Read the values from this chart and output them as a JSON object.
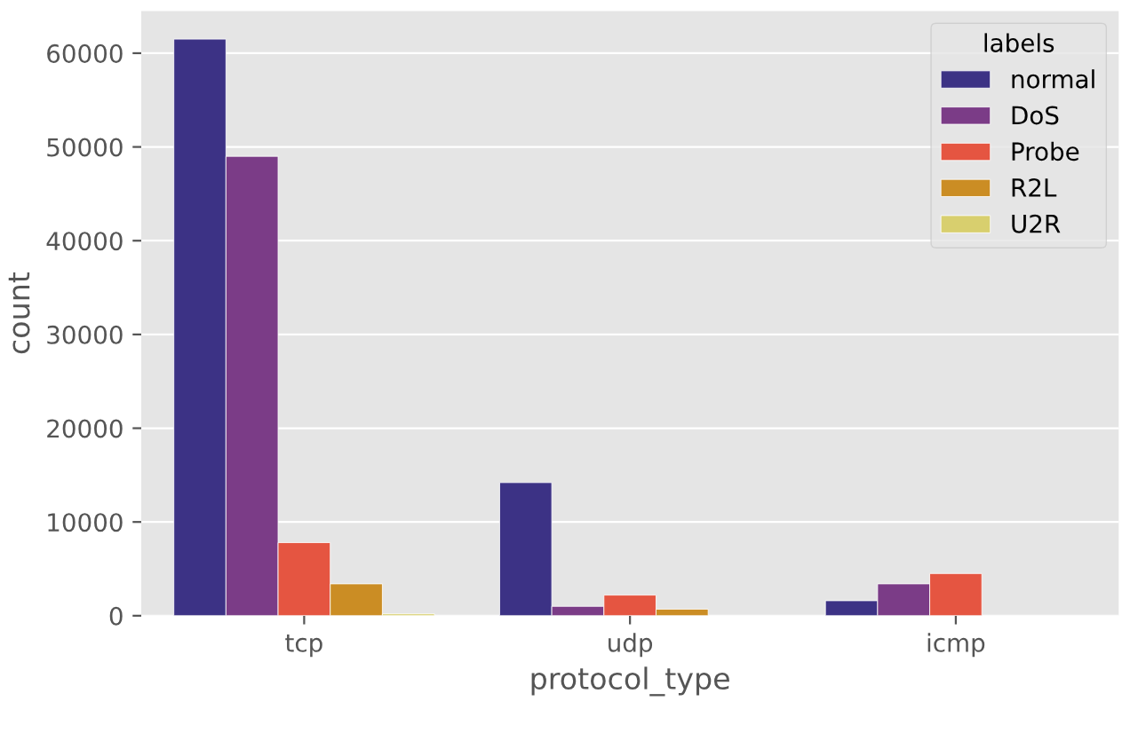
{
  "chart_data": {
    "type": "bar",
    "xlabel": "protocol_type",
    "ylabel": "count",
    "legend_title": "labels",
    "legend": "top right",
    "grid": "y",
    "categories": [
      "tcp",
      "udp",
      "icmp"
    ],
    "series": [
      {
        "name": "normal",
        "color": "#3c3285",
        "values": [
          61500,
          14200,
          1600
        ]
      },
      {
        "name": "DoS",
        "color": "#7b3c87",
        "values": [
          49000,
          1000,
          3400
        ]
      },
      {
        "name": "Probe",
        "color": "#e55541",
        "values": [
          7800,
          2200,
          4500
        ]
      },
      {
        "name": "R2L",
        "color": "#cb8d24",
        "values": [
          3400,
          700,
          null
        ]
      },
      {
        "name": "U2R",
        "color": "#d8cf6e",
        "values": [
          200,
          null,
          null
        ]
      }
    ],
    "ylim": [
      0,
      64500
    ],
    "yticks": [
      0,
      10000,
      20000,
      30000,
      40000,
      50000,
      60000
    ]
  }
}
